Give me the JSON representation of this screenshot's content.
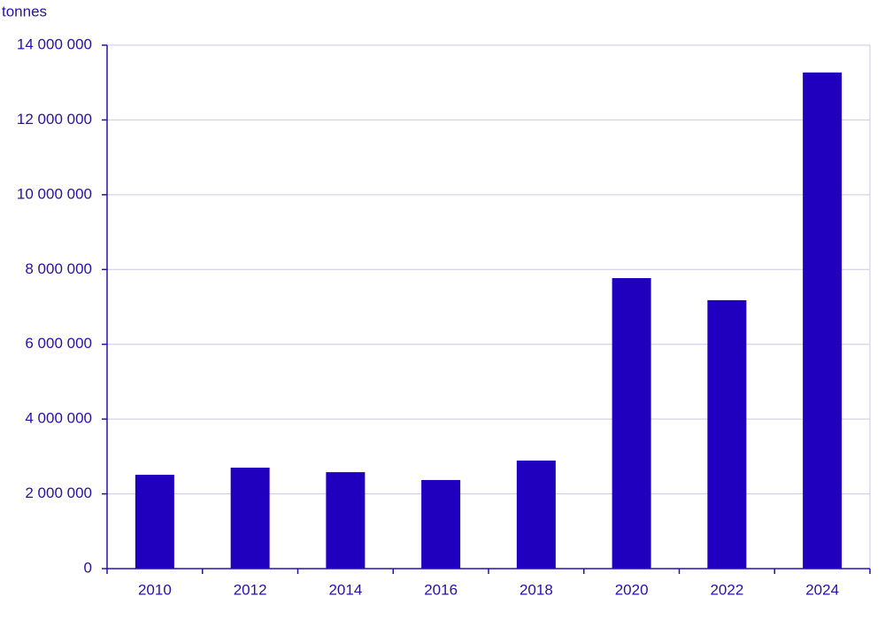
{
  "chart_data": {
    "type": "bar",
    "y_label": "tonnes",
    "categories": [
      "2010",
      "2012",
      "2014",
      "2016",
      "2018",
      "2020",
      "2022",
      "2024"
    ],
    "values": [
      2510000,
      2700000,
      2580000,
      2370000,
      2890000,
      7770000,
      7180000,
      13270000
    ],
    "color": "#2000be",
    "ylim": [
      0,
      14000000
    ],
    "yticks": [
      0,
      {
        "value": 2000000,
        "label": "2 000 000"
      },
      {
        "value": 4000000,
        "label": "4 000 000"
      },
      {
        "value": 6000000,
        "label": "6 000 000"
      },
      {
        "value": 8000000,
        "label": "8 000 000"
      },
      {
        "value": 10000000,
        "label": "10 000 000"
      },
      {
        "value": 12000000,
        "label": "12 000 000"
      },
      {
        "value": 14000000,
        "label": "14 000 000"
      }
    ],
    "grid": true
  }
}
